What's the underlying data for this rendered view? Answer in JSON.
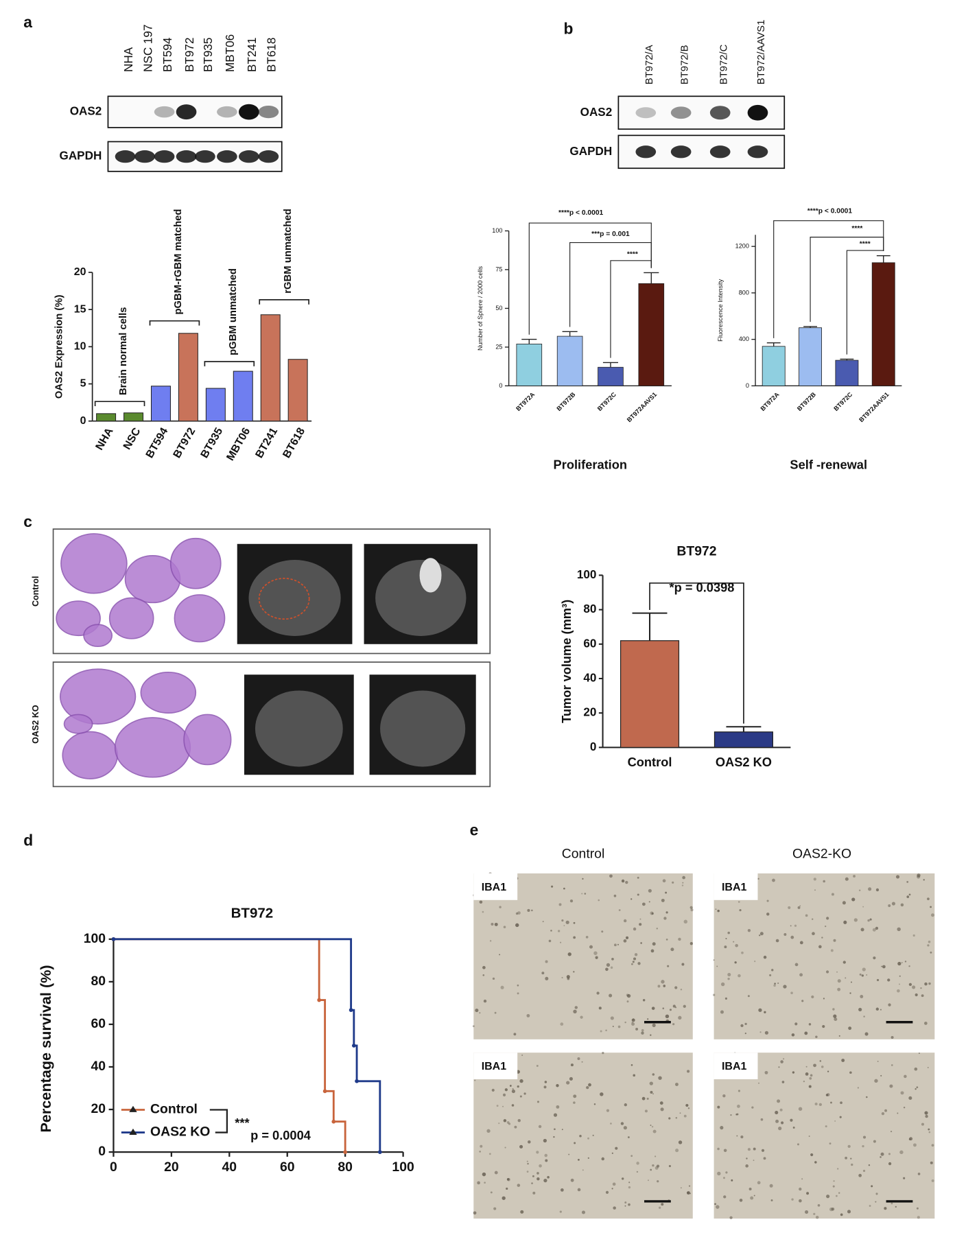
{
  "panel_labels": [
    "a",
    "b",
    "c",
    "d",
    "e"
  ],
  "blot_a": {
    "lanes": [
      {
        "label": "NHA",
        "color": "#5a8a2e"
      },
      {
        "label": "NSC 197",
        "color": "#5a8a2e"
      },
      {
        "label": "BT594",
        "color": "#7a86e8"
      },
      {
        "label": "BT972",
        "color": "#c88a5a"
      },
      {
        "label": "BT935",
        "color": "#7a86e8"
      },
      {
        "label": "MBT06",
        "color": "#7a86e8"
      },
      {
        "label": "BT241",
        "color": "#c88a5a"
      },
      {
        "label": "BT618",
        "color": "#c88a5a"
      }
    ],
    "rows": [
      "OAS2",
      "GAPDH"
    ]
  },
  "blot_b": {
    "lanes": [
      {
        "label": "BT972/A",
        "color": "#a8c8f0"
      },
      {
        "label": "BT972/B",
        "color": "#8ea8ee"
      },
      {
        "label": "BT972/C",
        "color": "#5262c0"
      },
      {
        "label": "BT972/AAVS1",
        "color": "#5a1a10"
      }
    ],
    "rows": [
      "OAS2",
      "GAPDH"
    ]
  },
  "tissue_c": {
    "rows": [
      "Control",
      "OAS2 KO"
    ]
  },
  "ihc_e": {
    "columns": [
      "Control",
      "OAS2-KO"
    ],
    "stain": "IBA1"
  },
  "chart_data": [
    {
      "type": "bar",
      "y_label": "OAS2 Expression (%)",
      "categories": [
        "NHA",
        "NSC",
        "BT594",
        "BT972",
        "BT935",
        "MBT06",
        "BT241",
        "BT618"
      ],
      "values": [
        1,
        1.1,
        4.7,
        11.8,
        4.4,
        6.7,
        14.3,
        8.3
      ],
      "colors": [
        "#5a8a2e",
        "#5a8a2e",
        "#6f7ef0",
        "#c8735a",
        "#6f7ef0",
        "#6f7ef0",
        "#c8735a",
        "#c8735a"
      ],
      "ylim": [
        0,
        20
      ],
      "yticks": [
        0,
        5,
        10,
        15,
        20
      ],
      "annotations": [
        "Brain normal cells",
        "pGBM-rGBM matched",
        "pGBM unmatched",
        "rGBM unmatched"
      ]
    },
    {
      "type": "bar",
      "x_label": "Proliferation",
      "y_label": "Number of Sphere / 2000 cells",
      "categories": [
        "BT972A",
        "BT972B",
        "BT972C",
        "BT972AAVS1"
      ],
      "values": [
        27,
        32,
        12,
        66
      ],
      "errors": [
        3,
        3,
        3,
        7
      ],
      "colors": [
        "#8fcfe0",
        "#9cbcf0",
        "#4a5bb0",
        "#5a1a10"
      ],
      "ylim": [
        0,
        100
      ],
      "yticks": [
        0,
        25,
        50,
        75,
        100
      ],
      "annotations": [
        "****p < 0.0001",
        "***p = 0.001",
        "****"
      ]
    },
    {
      "type": "bar",
      "x_label": "Self -renewal",
      "y_label": "Fluorescence Intensity",
      "categories": [
        "BT972A",
        "BT972B",
        "BT972C",
        "BT972AAVS1"
      ],
      "values": [
        340,
        500,
        220,
        1060
      ],
      "errors": [
        30,
        10,
        10,
        60
      ],
      "colors": [
        "#8fcfe0",
        "#9cbcf0",
        "#4a5bb0",
        "#5a1a10"
      ],
      "ylim": [
        0,
        1300
      ],
      "yticks": [
        0,
        400,
        800,
        1200
      ],
      "annotations": [
        "****p < 0.0001",
        "****",
        "****"
      ]
    },
    {
      "type": "bar",
      "title": "BT972",
      "y_label": "Tumor volume (mm³)",
      "categories": [
        "Control",
        "OAS2 KO"
      ],
      "values": [
        62,
        9
      ],
      "errors": [
        16,
        3
      ],
      "colors": [
        "#c0694e",
        "#2b3a86"
      ],
      "ylim": [
        0,
        100
      ],
      "yticks": [
        0,
        20,
        40,
        60,
        80,
        100
      ],
      "annotations": [
        "*p = 0.0398"
      ]
    },
    {
      "type": "line",
      "step": true,
      "title": "BT972",
      "y_label": "Percentage survival (%)",
      "xlim": [
        0,
        100
      ],
      "xticks": [
        0,
        20,
        40,
        60,
        80,
        100
      ],
      "ylim": [
        0,
        100
      ],
      "yticks": [
        0,
        20,
        40,
        60,
        80,
        100
      ],
      "series": [
        {
          "name": "Control",
          "color": "#c8643c",
          "x": [
            0,
            71,
            73,
            76,
            80
          ],
          "values": [
            100,
            71.4,
            28.6,
            14.3,
            0
          ]
        },
        {
          "name": "OAS2 KO",
          "color": "#1f3a8a",
          "x": [
            0,
            82,
            83,
            84,
            92
          ],
          "values": [
            100,
            66.7,
            50,
            33.3,
            0
          ]
        }
      ],
      "annotations": [
        "***",
        "p = 0.0004"
      ]
    }
  ]
}
